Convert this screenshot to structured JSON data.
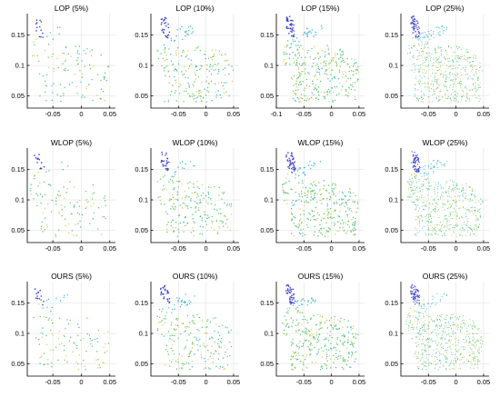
{
  "chart_data": [
    {
      "type": "scatter",
      "title": "LOP (5%)",
      "xlim": [
        -0.095,
        0.06
      ],
      "ylim": [
        0.03,
        0.185
      ],
      "xticks": [
        "-0.05",
        "0",
        "0.05"
      ],
      "xtick_values": [
        -0.05,
        0,
        0.05
      ],
      "yticks": [
        "0.05",
        "0.1",
        "0.15"
      ],
      "ytick_values": [
        0.05,
        0.1,
        0.15
      ],
      "density": 0.05,
      "grid": true
    },
    {
      "type": "scatter",
      "title": "LOP (10%)",
      "xlim": [
        -0.1,
        0.06
      ],
      "ylim": [
        0.03,
        0.185
      ],
      "xticks": [
        "-0.05",
        "0",
        "0.05"
      ],
      "xtick_values": [
        -0.05,
        0,
        0.05
      ],
      "yticks": [
        "0.05",
        "0.1",
        "0.15"
      ],
      "ytick_values": [
        0.05,
        0.1,
        0.15
      ],
      "density": 0.1,
      "grid": true
    },
    {
      "type": "scatter",
      "title": "LOP (15%)",
      "xlim": [
        -0.1,
        0.06
      ],
      "ylim": [
        0.03,
        0.185
      ],
      "xticks": [
        "-0.1",
        "-0.05",
        "0",
        "0.05"
      ],
      "xtick_values": [
        -0.1,
        -0.05,
        0,
        0.05
      ],
      "yticks": [
        "0.05",
        "0.1",
        "0.15"
      ],
      "ytick_values": [
        0.05,
        0.1,
        0.15
      ],
      "density": 0.15,
      "grid": true
    },
    {
      "type": "scatter",
      "title": "LOP (25%)",
      "xlim": [
        -0.1,
        0.06
      ],
      "ylim": [
        0.03,
        0.185
      ],
      "xticks": [
        "-0.05",
        "0",
        "0.05"
      ],
      "xtick_values": [
        -0.05,
        0,
        0.05
      ],
      "yticks": [
        "0.05",
        "0.1",
        "0.15"
      ],
      "ytick_values": [
        0.05,
        0.1,
        0.15
      ],
      "density": 0.25,
      "grid": true
    },
    {
      "type": "scatter",
      "title": "WLOP (5%)",
      "xlim": [
        -0.095,
        0.06
      ],
      "ylim": [
        0.03,
        0.185
      ],
      "xticks": [
        "-0.05",
        "0",
        "0.05"
      ],
      "xtick_values": [
        -0.05,
        0,
        0.05
      ],
      "yticks": [
        "0.05",
        "0.1",
        "0.15"
      ],
      "ytick_values": [
        0.05,
        0.1,
        0.15
      ],
      "density": 0.05,
      "grid": true
    },
    {
      "type": "scatter",
      "title": "WLOP (10%)",
      "xlim": [
        -0.1,
        0.06
      ],
      "ylim": [
        0.03,
        0.185
      ],
      "xticks": [
        "-0.05",
        "0",
        "0.05"
      ],
      "xtick_values": [
        -0.05,
        0,
        0.05
      ],
      "yticks": [
        "0.05",
        "0.1",
        "0.15"
      ],
      "ytick_values": [
        0.05,
        0.1,
        0.15
      ],
      "density": 0.1,
      "grid": true
    },
    {
      "type": "scatter",
      "title": "WLOP (15%)",
      "xlim": [
        -0.1,
        0.06
      ],
      "ylim": [
        0.03,
        0.185
      ],
      "xticks": [
        "-0.05",
        "0",
        "0.05"
      ],
      "xtick_values": [
        -0.05,
        0,
        0.05
      ],
      "yticks": [
        "0.05",
        "0.1",
        "0.15"
      ],
      "ytick_values": [
        0.05,
        0.1,
        0.15
      ],
      "density": 0.15,
      "grid": true
    },
    {
      "type": "scatter",
      "title": "WLOP (25%)",
      "xlim": [
        -0.1,
        0.06
      ],
      "ylim": [
        0.03,
        0.185
      ],
      "xticks": [
        "-0.05",
        "0",
        "0.05"
      ],
      "xtick_values": [
        -0.05,
        0,
        0.05
      ],
      "yticks": [
        "0.05",
        "0.1",
        "0.15"
      ],
      "ytick_values": [
        0.05,
        0.1,
        0.15
      ],
      "density": 0.25,
      "grid": true
    },
    {
      "type": "scatter",
      "title": "OURS (5%)",
      "xlim": [
        -0.095,
        0.06
      ],
      "ylim": [
        0.03,
        0.185
      ],
      "xticks": [
        "-0.05",
        "0",
        "0.05"
      ],
      "xtick_values": [
        -0.05,
        0,
        0.05
      ],
      "yticks": [
        "0.05",
        "0.1",
        "0.15"
      ],
      "ytick_values": [
        0.05,
        0.1,
        0.15
      ],
      "density": 0.05,
      "grid": true
    },
    {
      "type": "scatter",
      "title": "OURS (10%)",
      "xlim": [
        -0.1,
        0.06
      ],
      "ylim": [
        0.03,
        0.185
      ],
      "xticks": [
        "-0.05",
        "0",
        "0.05"
      ],
      "xtick_values": [
        -0.05,
        0,
        0.05
      ],
      "yticks": [
        "0.05",
        "0.1",
        "0.15"
      ],
      "ytick_values": [
        0.05,
        0.1,
        0.15
      ],
      "density": 0.1,
      "grid": true
    },
    {
      "type": "scatter",
      "title": "OURS (15%)",
      "xlim": [
        -0.1,
        0.06
      ],
      "ylim": [
        0.03,
        0.185
      ],
      "xticks": [
        "-0.05",
        "0",
        "0.05"
      ],
      "xtick_values": [
        -0.05,
        0,
        0.05
      ],
      "yticks": [
        "0.05",
        "0.1",
        "0.15"
      ],
      "ytick_values": [
        0.05,
        0.1,
        0.15
      ],
      "density": 0.15,
      "grid": true
    },
    {
      "type": "scatter",
      "title": "OURS (25%)",
      "xlim": [
        -0.1,
        0.06
      ],
      "ylim": [
        0.03,
        0.185
      ],
      "xticks": [
        "-0.05",
        "0",
        "0.05"
      ],
      "xtick_values": [
        -0.05,
        0,
        0.05
      ],
      "yticks": [
        "0.05",
        "0.1",
        "0.15"
      ],
      "ytick_values": [
        0.05,
        0.1,
        0.15
      ],
      "density": 0.25,
      "grid": true
    }
  ],
  "colors": {
    "ear": "#3b3fd6",
    "body_green": "#5cc660",
    "body_yellow": "#d8cf4a",
    "body_cyan": "#36b8c8"
  }
}
